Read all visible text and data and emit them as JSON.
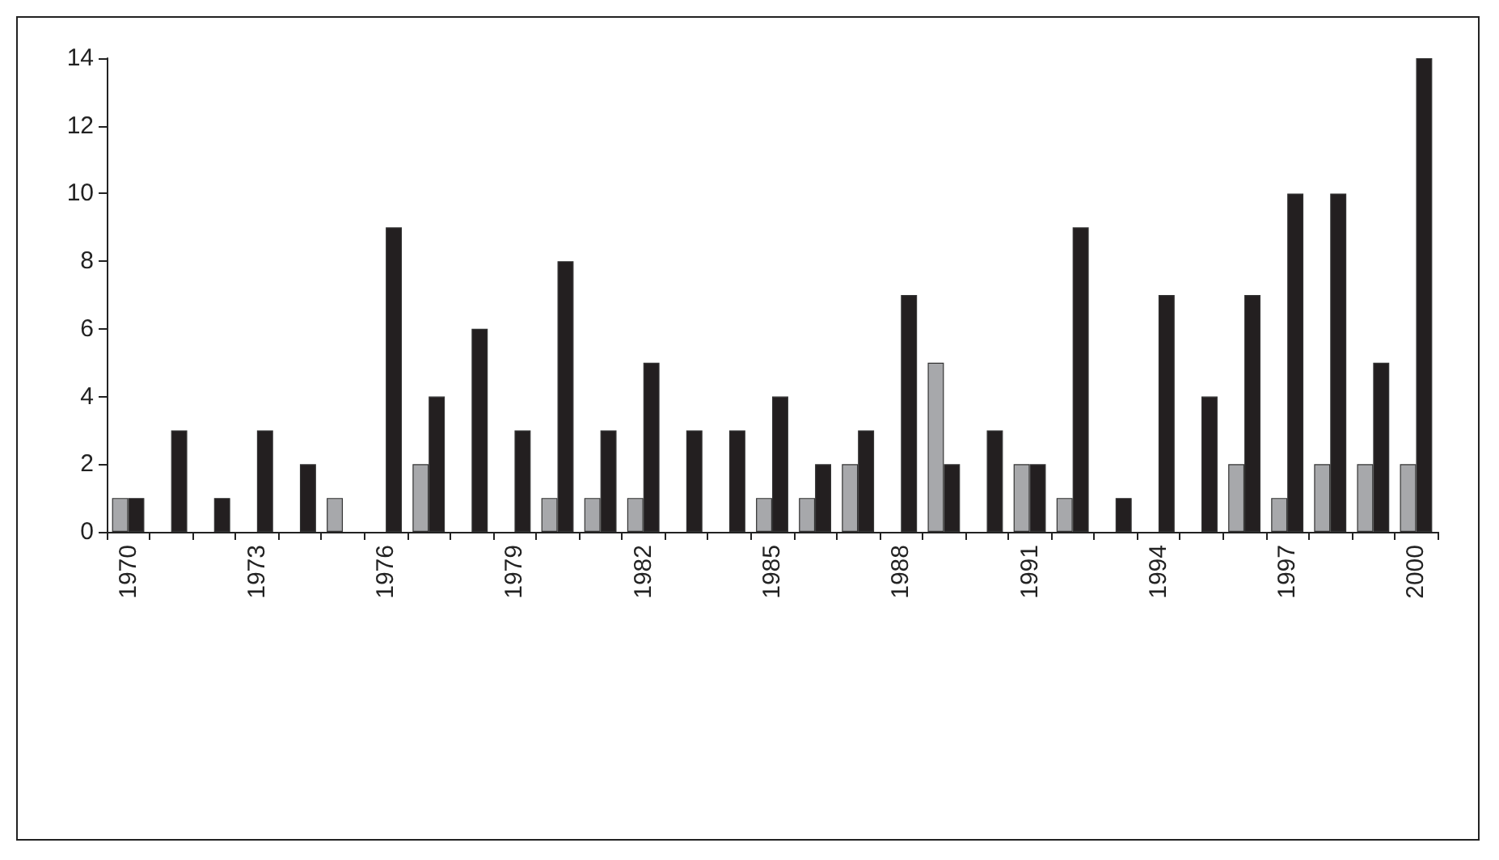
{
  "chart_data": {
    "type": "bar",
    "categories": [
      "1970",
      null,
      null,
      "1973",
      null,
      null,
      "1976",
      null,
      null,
      "1979",
      null,
      null,
      "1982",
      null,
      null,
      "1985",
      null,
      null,
      "1988",
      null,
      null,
      "1991",
      null,
      null,
      "1994",
      null,
      null,
      "1997",
      null,
      null,
      "2000"
    ],
    "series": [
      {
        "color": "#a7a8ab",
        "values": [
          1,
          0,
          0,
          0,
          0,
          1,
          0,
          2,
          0,
          0,
          1,
          1,
          1,
          0,
          0,
          1,
          1,
          2,
          0,
          5,
          0,
          2,
          1,
          0,
          0,
          0,
          2,
          1,
          2,
          2,
          2
        ]
      },
      {
        "color": "#231f20",
        "values": [
          1,
          3,
          1,
          3,
          2,
          0,
          9,
          4,
          6,
          3,
          8,
          3,
          5,
          3,
          3,
          4,
          2,
          3,
          7,
          2,
          3,
          2,
          9,
          1,
          7,
          4,
          7,
          10,
          10,
          5,
          14
        ]
      }
    ],
    "ylim": [
      0,
      14
    ],
    "yticks": [
      0,
      2,
      4,
      6,
      8,
      10,
      12,
      14
    ],
    "grid": false
  }
}
